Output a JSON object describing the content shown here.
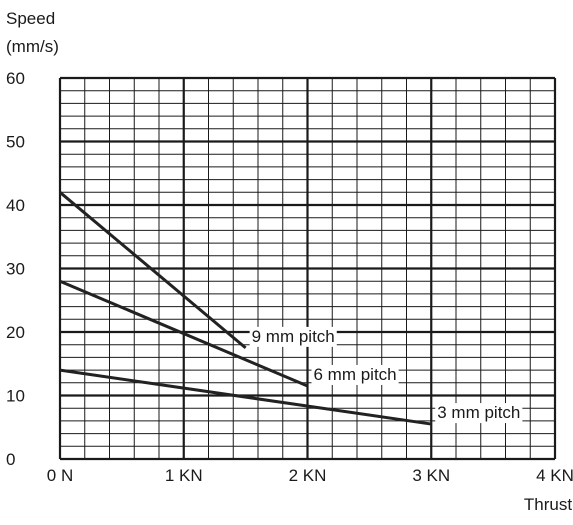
{
  "chart_data": {
    "type": "line",
    "title": "",
    "ylabel_lines": [
      "Speed",
      "(mm/s)"
    ],
    "xlabel": "Thrust",
    "x_ticks": [
      {
        "value": 0,
        "label": "0 N"
      },
      {
        "value": 1,
        "label": "1 KN"
      },
      {
        "value": 2,
        "label": "2 KN"
      },
      {
        "value": 3,
        "label": "3 KN"
      },
      {
        "value": 4,
        "label": "4 KN"
      }
    ],
    "y_ticks": [
      0,
      10,
      20,
      30,
      40,
      50,
      60
    ],
    "xlim": [
      0,
      4
    ],
    "ylim": [
      0,
      60
    ],
    "grid": true,
    "minor_grid_per_major": 5,
    "series": [
      {
        "name": "9 mm pitch",
        "x": [
          0,
          1.5
        ],
        "y": [
          42,
          17.5
        ]
      },
      {
        "name": "6 mm pitch",
        "x": [
          0,
          2
        ],
        "y": [
          28,
          11.5
        ]
      },
      {
        "name": "3 mm pitch",
        "x": [
          0,
          3
        ],
        "y": [
          14,
          5.5
        ]
      }
    ],
    "line_color": "#222222",
    "grid_color": "#1a1a1a"
  }
}
